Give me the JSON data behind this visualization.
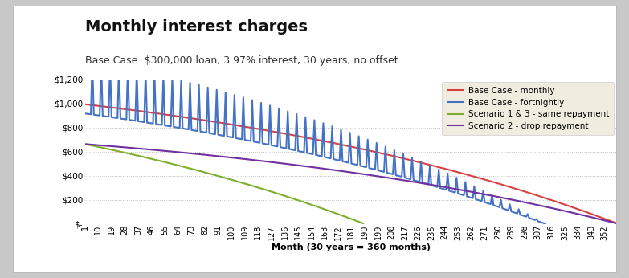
{
  "title": "Monthly interest charges",
  "subtitle": "Base Case: $300,000 loan, 3.97% interest, 30 years, no offset",
  "xlabel": "Month (30 years = 360 months)",
  "loan": 300000,
  "annual_rate": 0.0397,
  "years": 30,
  "colors": {
    "base_monthly": "#d94040",
    "base_fortnightly": "#4472c4",
    "scenario_1_3": "#7daf2c",
    "scenario_2": "#7030a0"
  },
  "legend_labels": [
    "Base Case - monthly",
    "Base Case - fortnightly",
    "Scenario 1 & 3 - same repayment",
    "Scenario 2 - drop repayment"
  ],
  "ylim": [
    0,
    1200
  ],
  "fig_facecolor": "#c8c8c8",
  "chart_facecolor": "#ffffff",
  "legend_facecolor": "#f0ede0",
  "title_fontsize": 14,
  "subtitle_fontsize": 9,
  "tick_fontsize": 7,
  "label_fontsize": 8
}
